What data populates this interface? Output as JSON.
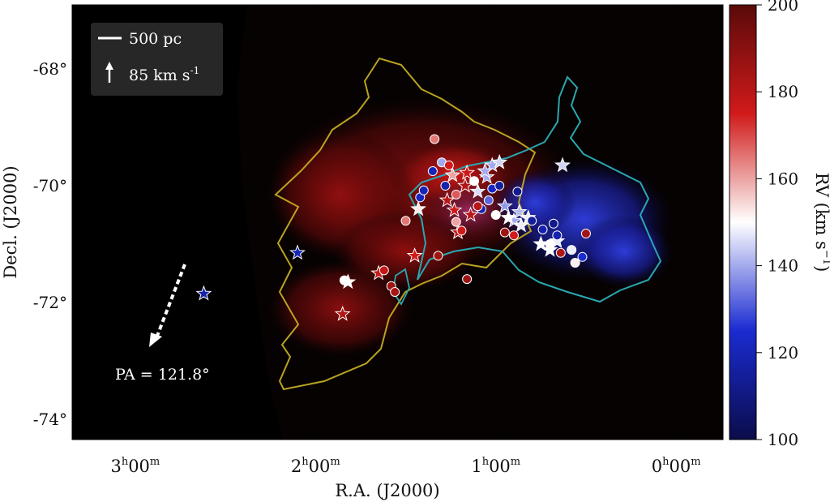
{
  "chart_data": {
    "type": "scatter",
    "xlabel": "R.A. (J2000)",
    "ylabel": "Decl. (J2000)",
    "x_ticks": [
      {
        "value": 3,
        "h": "3",
        "m": "00"
      },
      {
        "value": 2,
        "h": "2",
        "m": "00"
      },
      {
        "value": 1,
        "h": "1",
        "m": "00"
      },
      {
        "value": 0,
        "h": "0",
        "m": "00"
      }
    ],
    "y_ticks": [
      {
        "value": -68,
        "label": "-68°"
      },
      {
        "value": -70,
        "label": "-70°"
      },
      {
        "value": -72,
        "label": "-72°"
      },
      {
        "value": -74,
        "label": "-74°"
      }
    ],
    "xlim_hours": [
      3.35,
      -0.26
    ],
    "ylim_deg": [
      -74.35,
      -66.9
    ],
    "colorbar": {
      "label": "RV (km s",
      "label_sup": "−1",
      "label_end": ")",
      "range": [
        100,
        200
      ],
      "ticks": [
        "200",
        "180",
        "160",
        "140",
        "120",
        "100"
      ],
      "colors": [
        "#0b0c4a",
        "#1a2bd1",
        "#ffffff",
        "#d11a1a",
        "#5a0a0a"
      ]
    },
    "legend": {
      "scale_label": "500 pc",
      "velocity_label": "85 km s",
      "velocity_sup": "-1"
    },
    "pa_label": "PA = 121.8°",
    "series": [
      {
        "marker": "star",
        "points": [
          {
            "ra": 2.1,
            "dec": -71.15,
            "rv": 120
          },
          {
            "ra": 2.62,
            "dec": -71.85,
            "rv": 118
          },
          {
            "ra": 1.82,
            "dec": -71.65,
            "rv": 150
          },
          {
            "ra": 1.85,
            "dec": -72.2,
            "rv": 182
          },
          {
            "ra": 1.65,
            "dec": -71.5,
            "rv": 178
          },
          {
            "ra": 1.45,
            "dec": -71.2,
            "rv": 175
          },
          {
            "ra": 1.27,
            "dec": -70.25,
            "rv": 180
          },
          {
            "ra": 1.23,
            "dec": -70.42,
            "rv": 176
          },
          {
            "ra": 1.21,
            "dec": -70.8,
            "rv": 178
          },
          {
            "ra": 1.17,
            "dec": -70.0,
            "rv": 182
          },
          {
            "ra": 1.14,
            "dec": -70.5,
            "rv": 180
          },
          {
            "ra": 1.16,
            "dec": -69.78,
            "rv": 176
          },
          {
            "ra": 1.24,
            "dec": -69.82,
            "rv": 160
          },
          {
            "ra": 1.1,
            "dec": -70.1,
            "rv": 146
          },
          {
            "ra": 1.05,
            "dec": -69.85,
            "rv": 140
          },
          {
            "ra": 1.02,
            "dec": -69.65,
            "rv": 140
          },
          {
            "ra": 0.98,
            "dec": -69.6,
            "rv": 145
          },
          {
            "ra": 0.95,
            "dec": -70.35,
            "rv": 138
          },
          {
            "ra": 0.9,
            "dec": -70.6,
            "rv": 140
          },
          {
            "ra": 0.87,
            "dec": -70.45,
            "rv": 142
          },
          {
            "ra": 0.86,
            "dec": -70.68,
            "rv": 148
          },
          {
            "ra": 0.82,
            "dec": -70.55,
            "rv": 148
          },
          {
            "ra": 0.75,
            "dec": -71.0,
            "rv": 150
          },
          {
            "ra": 0.7,
            "dec": -71.1,
            "rv": 150
          },
          {
            "ra": 0.66,
            "dec": -70.95,
            "rv": 148
          },
          {
            "ra": 0.63,
            "dec": -69.65,
            "rv": 145
          },
          {
            "ra": 1.43,
            "dec": -70.4,
            "rv": 152
          },
          {
            "ra": 1.06,
            "dec": -69.75,
            "rv": 140
          },
          {
            "ra": 0.93,
            "dec": -70.55,
            "rv": 150
          }
        ]
      },
      {
        "marker": "circle",
        "points": [
          {
            "ra": 1.34,
            "dec": -69.2,
            "rv": 165
          },
          {
            "ra": 1.3,
            "dec": -69.6,
            "rv": 140
          },
          {
            "ra": 1.26,
            "dec": -69.65,
            "rv": 175
          },
          {
            "ra": 1.35,
            "dec": -69.75,
            "rv": 120
          },
          {
            "ra": 1.28,
            "dec": -70.0,
            "rv": 118
          },
          {
            "ra": 1.22,
            "dec": -70.15,
            "rv": 168
          },
          {
            "ra": 1.42,
            "dec": -70.2,
            "rv": 122
          },
          {
            "ra": 1.5,
            "dec": -70.6,
            "rv": 165
          },
          {
            "ra": 1.22,
            "dec": -70.62,
            "rv": 160
          },
          {
            "ra": 1.19,
            "dec": -70.77,
            "rv": 175
          },
          {
            "ra": 1.08,
            "dec": -70.4,
            "rv": 118
          },
          {
            "ra": 1.1,
            "dec": -70.35,
            "rv": 180
          },
          {
            "ra": 1.04,
            "dec": -70.25,
            "rv": 132
          },
          {
            "ra": 1.02,
            "dec": -70.05,
            "rv": 122
          },
          {
            "ra": 0.98,
            "dec": -70.0,
            "rv": 115
          },
          {
            "ra": 0.95,
            "dec": -70.8,
            "rv": 185
          },
          {
            "ra": 0.9,
            "dec": -70.85,
            "rv": 175
          },
          {
            "ra": 0.88,
            "dec": -70.1,
            "rv": 112
          },
          {
            "ra": 0.8,
            "dec": -70.6,
            "rv": 115
          },
          {
            "ra": 0.74,
            "dec": -70.75,
            "rv": 118
          },
          {
            "ra": 0.68,
            "dec": -70.65,
            "rv": 112
          },
          {
            "ra": 0.66,
            "dec": -70.85,
            "rv": 118
          },
          {
            "ra": 0.64,
            "dec": -71.15,
            "rv": 182
          },
          {
            "ra": 0.58,
            "dec": -71.1,
            "rv": 148
          },
          {
            "ra": 0.56,
            "dec": -71.32,
            "rv": 152
          },
          {
            "ra": 0.52,
            "dec": -71.22,
            "rv": 125
          },
          {
            "ra": 0.5,
            "dec": -70.82,
            "rv": 185
          },
          {
            "ra": 1.32,
            "dec": -71.2,
            "rv": 185
          },
          {
            "ra": 1.16,
            "dec": -71.6,
            "rv": 186
          },
          {
            "ra": 1.58,
            "dec": -71.72,
            "rv": 185
          },
          {
            "ra": 1.56,
            "dec": -71.82,
            "rv": 183
          },
          {
            "ra": 1.84,
            "dec": -71.62,
            "rv": 150
          },
          {
            "ra": 1.62,
            "dec": -71.45,
            "rv": 178
          },
          {
            "ra": 1.4,
            "dec": -70.08,
            "rv": 120
          },
          {
            "ra": 1.12,
            "dec": -69.92,
            "rv": 150
          },
          {
            "ra": 1.0,
            "dec": -70.5,
            "rv": 150
          },
          {
            "ra": 0.7,
            "dec": -71.0,
            "rv": 150
          }
        ]
      }
    ]
  }
}
